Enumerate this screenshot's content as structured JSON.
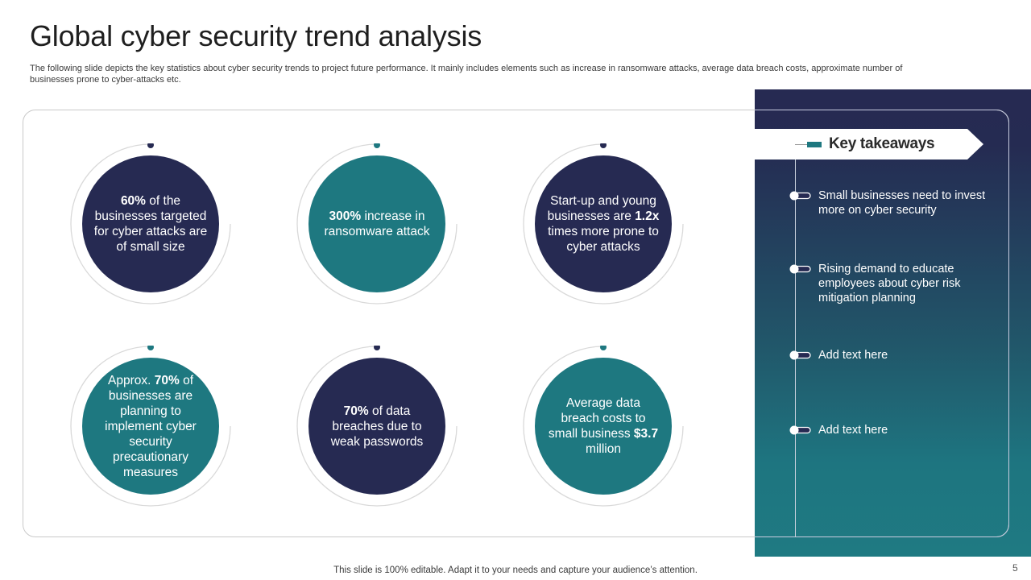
{
  "header": {
    "title": "Global cyber security trend analysis",
    "subtitle": "The following slide depicts the key statistics about cyber security trends to project future performance. It mainly includes elements such as increase in ransomware attacks, average data breach costs, approximate number of businesses prone to cyber-attacks etc."
  },
  "colors": {
    "navy": "#262a52",
    "teal": "#1e7880",
    "ring": "#d9d9d9"
  },
  "stats": [
    {
      "pre": "",
      "bold": "60%",
      "post": " of the businesses targeted for cyber attacks are of small size",
      "color": "navy"
    },
    {
      "pre": "",
      "bold": "300%",
      "post": " increase in ransomware attack",
      "color": "teal"
    },
    {
      "pre": "Start-up and young businesses are ",
      "bold": "1.2x",
      "post": " times more prone to cyber attacks",
      "color": "navy"
    },
    {
      "pre": "Approx. ",
      "bold": "70%",
      "post": " of businesses are planning to implement cyber security precautionary measures",
      "color": "teal"
    },
    {
      "pre": "",
      "bold": "70%",
      "post": " of data breaches due to weak passwords",
      "color": "navy"
    },
    {
      "pre": "Average data breach costs to small business ",
      "bold": "$3.7",
      "post": " million",
      "color": "teal"
    }
  ],
  "takeaways": {
    "heading": "Key takeaways",
    "items": [
      "Small businesses need to invest more on cyber security",
      "Rising demand to educate employees about cyber risk mitigation planning",
      "Add text here",
      "Add text here"
    ]
  },
  "footer": {
    "note": "This slide is 100% editable. Adapt it to your needs and capture your audience’s attention.",
    "page_number": "5"
  }
}
